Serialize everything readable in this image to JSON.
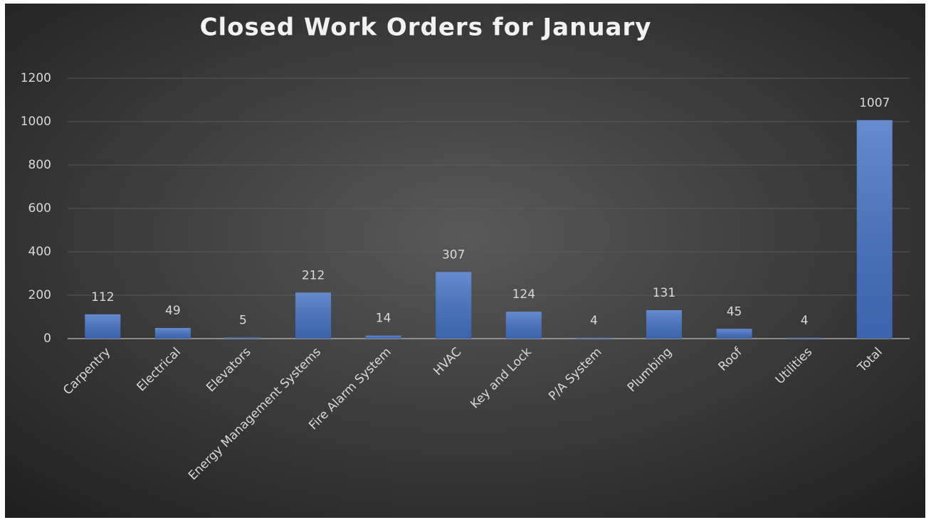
{
  "chart_data": {
    "type": "bar",
    "title": "Closed Work Orders for January",
    "categories": [
      "Carpentry",
      "Electrical",
      "Elevators",
      "Energy Management Systems",
      "Fire Alarm System",
      "HVAC",
      "Key and Lock",
      "P/A System",
      "Plumbing",
      "Roof",
      "Utilities",
      "Total"
    ],
    "values": [
      112,
      49,
      5,
      212,
      14,
      307,
      124,
      4,
      131,
      45,
      4,
      1007
    ],
    "color": "#4472c4",
    "ylim": [
      0,
      1200
    ],
    "yticks": [
      0,
      200,
      400,
      600,
      800,
      1000,
      1200
    ],
    "grid": true,
    "data_labels": true
  }
}
